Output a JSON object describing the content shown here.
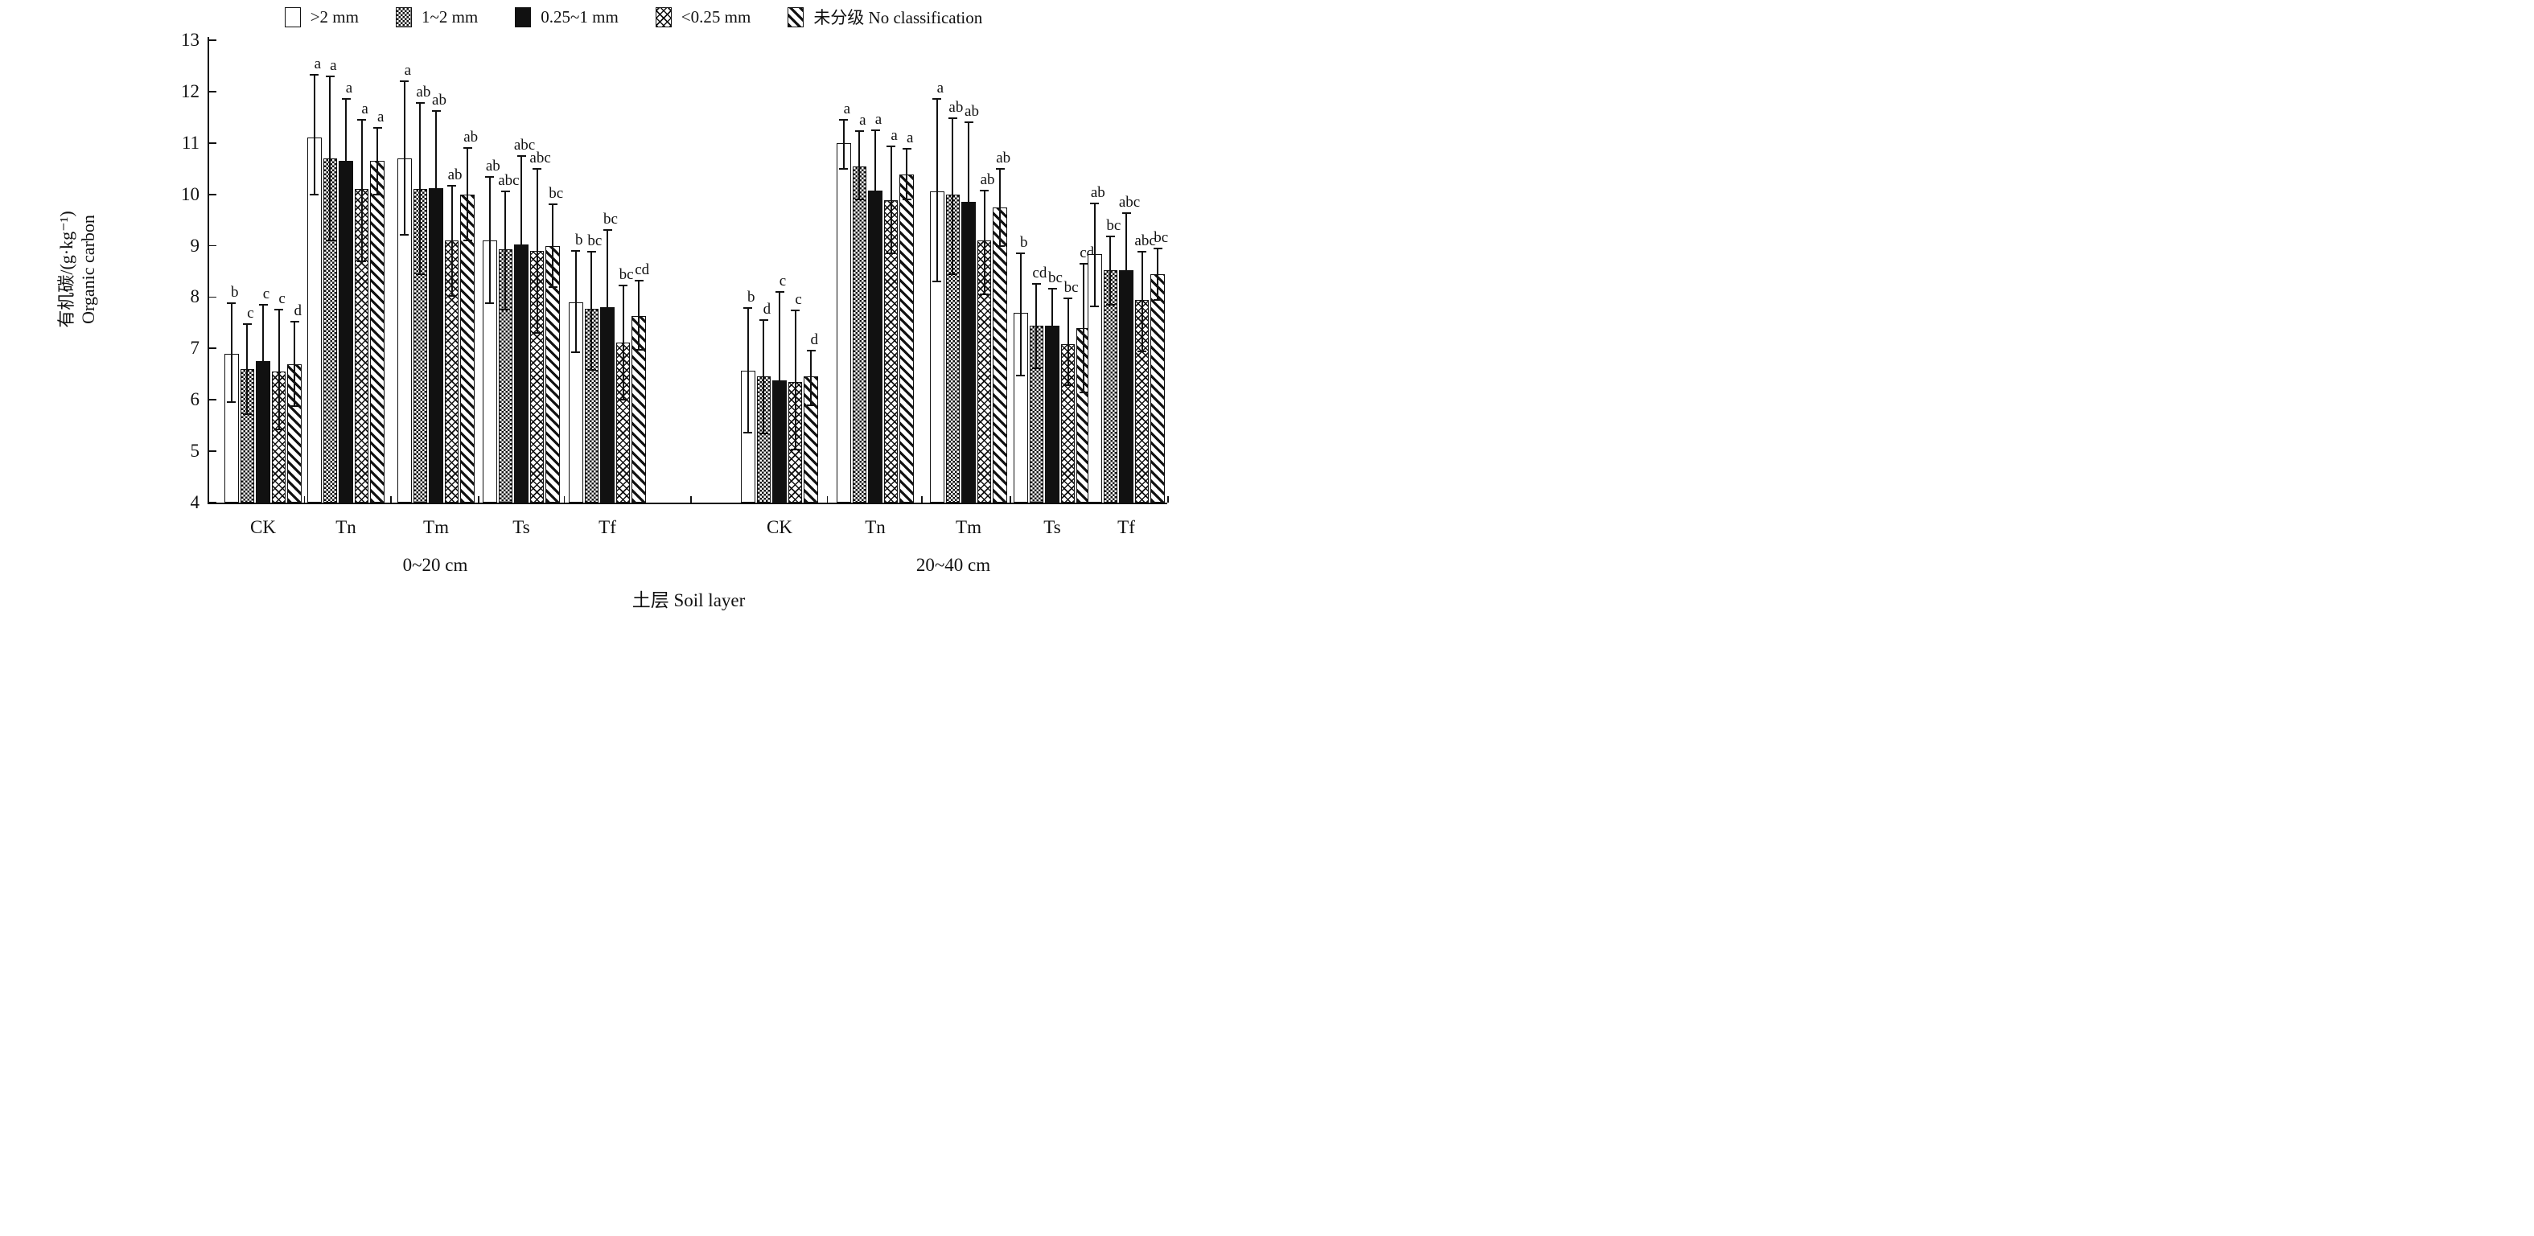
{
  "chart_data": {
    "type": "bar",
    "title": "",
    "ylabel_cn": "有机碳/(g·kg⁻¹)",
    "ylabel_en": "Organic carbon",
    "xlabel": "土层 Soil layer",
    "ylim": [
      4,
      13
    ],
    "yticks": [
      4,
      5,
      6,
      7,
      8,
      9,
      10,
      11,
      12,
      13
    ],
    "grid": false,
    "legend_position": "top",
    "legend": [
      {
        "label": ">2 mm",
        "pattern": "plain"
      },
      {
        "label": "1~2 mm",
        "pattern": "checker"
      },
      {
        "label": "0.25~1 mm",
        "pattern": "solid"
      },
      {
        "label": "<0.25 mm",
        "pattern": "crosshatch"
      },
      {
        "label": "未分级 No classification",
        "pattern": "diagonal"
      }
    ],
    "panels": [
      {
        "label": "0~20 cm",
        "groups": [
          {
            "name": "CK",
            "bars": [
              {
                "value": 6.9,
                "err_up": 0.98,
                "err_down": 0.95,
                "letter": "b"
              },
              {
                "value": 6.6,
                "err_up": 0.88,
                "err_down": 0.88,
                "letter": "c"
              },
              {
                "value": 6.75,
                "err_up": 1.1,
                "err_down": 1.1,
                "letter": "c"
              },
              {
                "value": 6.55,
                "err_up": 1.2,
                "err_down": 1.13,
                "letter": "c"
              },
              {
                "value": 6.7,
                "err_up": 0.82,
                "err_down": 0.82,
                "letter": "d"
              }
            ]
          },
          {
            "name": "Tn",
            "bars": [
              {
                "value": 11.1,
                "err_up": 1.22,
                "err_down": 1.1,
                "letter": "a"
              },
              {
                "value": 10.7,
                "err_up": 1.6,
                "err_down": 1.6,
                "letter": "a"
              },
              {
                "value": 10.65,
                "err_up": 1.2,
                "err_down": 1.2,
                "letter": "a"
              },
              {
                "value": 10.1,
                "err_up": 1.35,
                "err_down": 1.4,
                "letter": "a"
              },
              {
                "value": 10.65,
                "err_up": 0.65,
                "err_down": 0.65,
                "letter": "a"
              }
            ]
          },
          {
            "name": "Tm",
            "bars": [
              {
                "value": 10.7,
                "err_up": 1.5,
                "err_down": 1.48,
                "letter": "a"
              },
              {
                "value": 10.1,
                "err_up": 1.68,
                "err_down": 1.65,
                "letter": "ab"
              },
              {
                "value": 10.12,
                "err_up": 1.5,
                "err_down": 1.5,
                "letter": "ab"
              },
              {
                "value": 9.1,
                "err_up": 1.07,
                "err_down": 1.07,
                "letter": "ab"
              },
              {
                "value": 10.0,
                "err_up": 0.9,
                "err_down": 0.9,
                "letter": "ab"
              }
            ]
          },
          {
            "name": "Ts",
            "bars": [
              {
                "value": 9.1,
                "err_up": 1.24,
                "err_down": 1.22,
                "letter": "ab"
              },
              {
                "value": 8.93,
                "err_up": 1.12,
                "err_down": 1.18,
                "letter": "abc"
              },
              {
                "value": 9.02,
                "err_up": 1.73,
                "err_down": 1.7,
                "letter": "abc"
              },
              {
                "value": 8.9,
                "err_up": 1.59,
                "err_down": 1.6,
                "letter": "abc"
              },
              {
                "value": 9.0,
                "err_up": 0.81,
                "err_down": 0.81,
                "letter": "bc"
              }
            ]
          },
          {
            "name": "Tf",
            "bars": [
              {
                "value": 7.9,
                "err_up": 1.0,
                "err_down": 0.98,
                "letter": "b"
              },
              {
                "value": 7.77,
                "err_up": 1.11,
                "err_down": 1.19,
                "letter": "bc"
              },
              {
                "value": 7.8,
                "err_up": 1.5,
                "err_down": 1.5,
                "letter": "bc"
              },
              {
                "value": 7.12,
                "err_up": 1.1,
                "err_down": 1.12,
                "letter": "bc"
              },
              {
                "value": 7.63,
                "err_up": 0.69,
                "err_down": 0.65,
                "letter": "cd"
              }
            ]
          }
        ]
      },
      {
        "label": "20~40 cm",
        "groups": [
          {
            "name": "CK",
            "bars": [
              {
                "value": 6.56,
                "err_up": 1.23,
                "err_down": 1.2,
                "letter": "b"
              },
              {
                "value": 6.45,
                "err_up": 1.11,
                "err_down": 1.11,
                "letter": "d"
              },
              {
                "value": 6.38,
                "err_up": 1.72,
                "err_down": 1.35,
                "letter": "c"
              },
              {
                "value": 6.35,
                "err_up": 1.39,
                "err_down": 1.31,
                "letter": "c"
              },
              {
                "value": 6.45,
                "err_up": 0.51,
                "err_down": 0.55,
                "letter": "d"
              }
            ]
          },
          {
            "name": "Tn",
            "bars": [
              {
                "value": 11.0,
                "err_up": 0.45,
                "err_down": 0.5,
                "letter": "a"
              },
              {
                "value": 10.55,
                "err_up": 0.68,
                "err_down": 0.65,
                "letter": "a"
              },
              {
                "value": 10.07,
                "err_up": 1.18,
                "err_down": 1.18,
                "letter": "a"
              },
              {
                "value": 9.88,
                "err_up": 1.05,
                "err_down": 1.03,
                "letter": "a"
              },
              {
                "value": 10.39,
                "err_up": 0.49,
                "err_down": 0.49,
                "letter": "a"
              }
            ]
          },
          {
            "name": "Tm",
            "bars": [
              {
                "value": 10.06,
                "err_up": 1.8,
                "err_down": 1.76,
                "letter": "a"
              },
              {
                "value": 10.0,
                "err_up": 1.48,
                "err_down": 1.55,
                "letter": "ab"
              },
              {
                "value": 9.85,
                "err_up": 1.55,
                "err_down": 1.55,
                "letter": "ab"
              },
              {
                "value": 9.1,
                "err_up": 0.98,
                "err_down": 1.05,
                "letter": "ab"
              },
              {
                "value": 9.75,
                "err_up": 0.74,
                "err_down": 0.75,
                "letter": "ab"
              }
            ]
          },
          {
            "name": "Ts",
            "bars": [
              {
                "value": 7.69,
                "err_up": 1.17,
                "err_down": 1.22,
                "letter": "b"
              },
              {
                "value": 7.44,
                "err_up": 0.82,
                "err_down": 0.83,
                "letter": "cd"
              },
              {
                "value": 7.44,
                "err_up": 0.73,
                "err_down": 0.73,
                "letter": "bc"
              },
              {
                "value": 7.09,
                "err_up": 0.89,
                "err_down": 0.8,
                "letter": "bc"
              },
              {
                "value": 7.4,
                "err_up": 1.25,
                "err_down": 1.25,
                "letter": "cd"
              }
            ]
          },
          {
            "name": "Tf",
            "bars": [
              {
                "value": 8.84,
                "err_up": 0.99,
                "err_down": 1.02,
                "letter": "ab"
              },
              {
                "value": 8.52,
                "err_up": 0.66,
                "err_down": 0.67,
                "letter": "bc"
              },
              {
                "value": 8.52,
                "err_up": 1.11,
                "err_down": 1.12,
                "letter": "abc"
              },
              {
                "value": 7.94,
                "err_up": 0.95,
                "err_down": 0.99,
                "letter": "abc"
              },
              {
                "value": 8.45,
                "err_up": 0.5,
                "err_down": 0.5,
                "letter": "bc"
              }
            ]
          }
        ]
      }
    ]
  }
}
